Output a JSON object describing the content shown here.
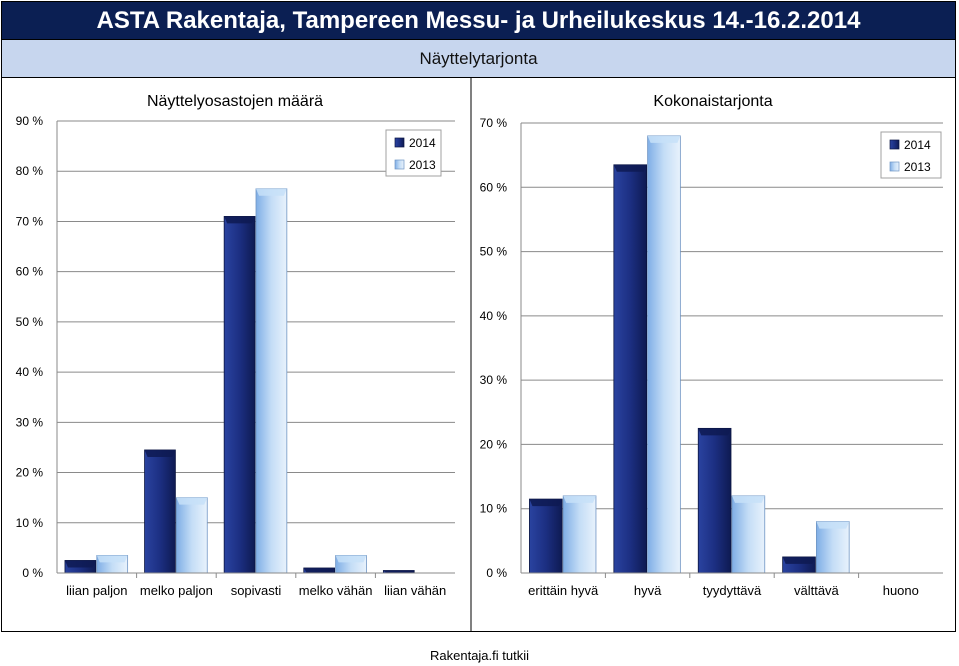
{
  "header": {
    "title": "ASTA Rakentaja, Tampereen Messu- ja Urheilukeskus 14.-16.2.2014",
    "subtitle": "Näyttelytarjonta"
  },
  "footer": {
    "text": "Rakentaja.fi tutkii"
  },
  "colors": {
    "series_2014": "#1a2f7a",
    "series_2013": "#9cc3ef",
    "title_bar": "#0b1f53",
    "subtitle_bar": "#c7d6ee"
  },
  "chart_data": [
    {
      "type": "bar",
      "title": "Näyttelyosastojen määrä",
      "categories": [
        "liian paljon",
        "melko paljon",
        "sopivasti",
        "melko vähän",
        "liian vähän"
      ],
      "series": [
        {
          "name": "2014",
          "values": [
            2.5,
            24.5,
            71,
            1,
            0.5
          ]
        },
        {
          "name": "2013",
          "values": [
            3.5,
            15,
            76.5,
            3.5,
            0
          ]
        }
      ],
      "ylim": [
        0,
        90
      ],
      "yticks": [
        "0 %",
        "10 %",
        "20 %",
        "30 %",
        "40 %",
        "50 %",
        "60 %",
        "70 %",
        "80 %",
        "90 %"
      ],
      "ytick_values": [
        0,
        10,
        20,
        30,
        40,
        50,
        60,
        70,
        80,
        90
      ],
      "grid": true,
      "legend": "top-right"
    },
    {
      "type": "bar",
      "title": "Kokonaistarjonta",
      "categories": [
        "erittäin hyvä",
        "hyvä",
        "tyydyttävä",
        "välttävä",
        "huono"
      ],
      "series": [
        {
          "name": "2014",
          "values": [
            11.5,
            63.5,
            22.5,
            2.5,
            0
          ]
        },
        {
          "name": "2013",
          "values": [
            12,
            68,
            12,
            8,
            0
          ]
        }
      ],
      "ylim": [
        0,
        70
      ],
      "yticks": [
        "0 %",
        "10 %",
        "20 %",
        "30 %",
        "40 %",
        "50 %",
        "60 %",
        "70 %"
      ],
      "ytick_values": [
        0,
        10,
        20,
        30,
        40,
        50,
        60,
        70
      ],
      "grid": true,
      "legend": "top-right"
    }
  ]
}
